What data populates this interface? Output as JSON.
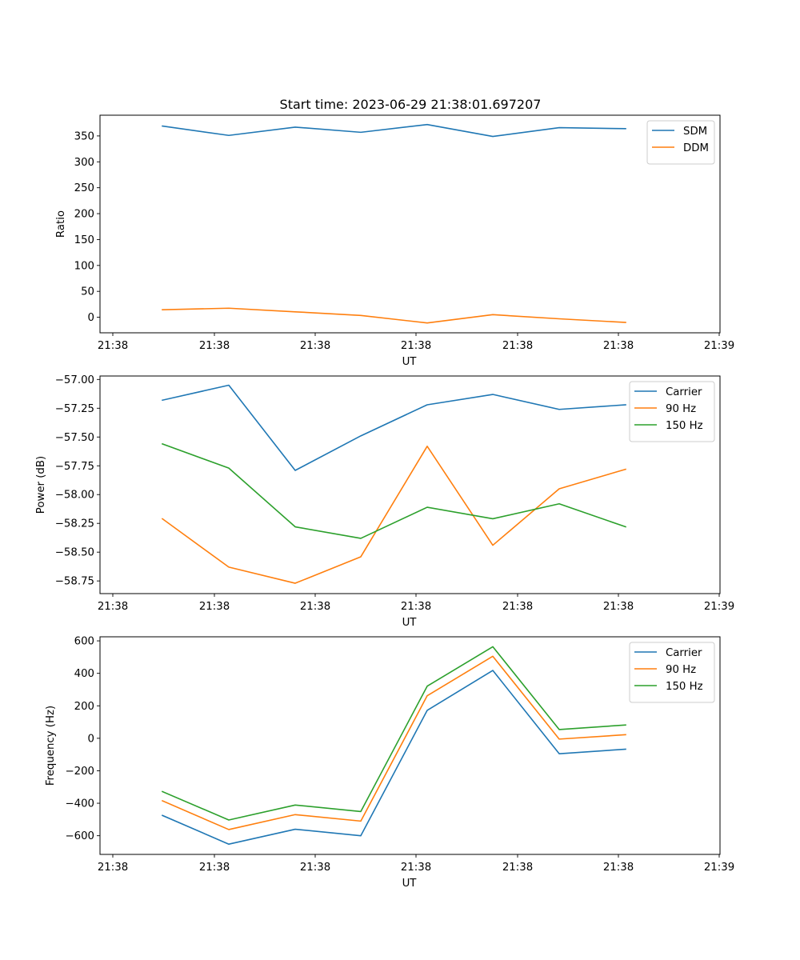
{
  "figure": {
    "title": "Start time: 2023-06-29 21:38:01.697207"
  },
  "chart_data": [
    {
      "type": "line",
      "xlabel": "UT",
      "ylabel": "Ratio",
      "x_tick_labels": [
        "21:38",
        "21:38",
        "21:38",
        "21:38",
        "21:38",
        "21:38",
        "21:39"
      ],
      "ylim": [
        -30,
        390
      ],
      "yticks": [
        0,
        50,
        100,
        150,
        200,
        250,
        300,
        350
      ],
      "ytick_labels": [
        "0",
        "50",
        "100",
        "150",
        "200",
        "250",
        "300",
        "350"
      ],
      "grid": false,
      "legend_position": "top-right",
      "series": [
        {
          "name": "SDM",
          "color": "#1f77b4",
          "values": [
            369,
            351,
            367,
            357,
            372,
            349,
            366,
            364
          ]
        },
        {
          "name": "DDM",
          "color": "#ff7f0e",
          "values": [
            14.5,
            17.5,
            10.5,
            3.5,
            -11,
            5,
            -3,
            -10
          ]
        }
      ]
    },
    {
      "type": "line",
      "xlabel": "UT",
      "ylabel": "Power (dB)",
      "x_tick_labels": [
        "21:38",
        "21:38",
        "21:38",
        "21:38",
        "21:38",
        "21:38",
        "21:39"
      ],
      "ylim": [
        -58.86,
        -56.97
      ],
      "yticks": [
        -57.0,
        -57.25,
        -57.5,
        -57.75,
        -58.0,
        -58.25,
        -58.5,
        -58.75
      ],
      "ytick_labels": [
        "−57.00",
        "−57.25",
        "−57.50",
        "−57.75",
        "−58.00",
        "−58.25",
        "−58.50",
        "−58.75"
      ],
      "grid": false,
      "legend_position": "top-right",
      "series": [
        {
          "name": "Carrier",
          "color": "#1f77b4",
          "values": [
            -57.18,
            -57.05,
            -57.79,
            -57.49,
            -57.22,
            -57.13,
            -57.26,
            -57.22
          ]
        },
        {
          "name": "90 Hz",
          "color": "#ff7f0e",
          "values": [
            -58.21,
            -58.63,
            -58.77,
            -58.54,
            -57.58,
            -58.44,
            -57.95,
            -57.78
          ]
        },
        {
          "name": "150 Hz",
          "color": "#2ca02c",
          "values": [
            -57.56,
            -57.77,
            -58.28,
            -58.38,
            -58.11,
            -58.21,
            -58.08,
            -58.28
          ]
        }
      ]
    },
    {
      "type": "line",
      "xlabel": "UT",
      "ylabel": "Frequency (Hz)",
      "x_tick_labels": [
        "21:38",
        "21:38",
        "21:38",
        "21:38",
        "21:38",
        "21:38",
        "21:39"
      ],
      "ylim": [
        -715,
        625
      ],
      "yticks": [
        -600,
        -400,
        -200,
        0,
        200,
        400,
        600
      ],
      "ytick_labels": [
        "−600",
        "−400",
        "−200",
        "0",
        "200",
        "400",
        "600"
      ],
      "grid": false,
      "legend_position": "top-right",
      "series": [
        {
          "name": "Carrier",
          "color": "#1f77b4",
          "values": [
            -475,
            -652,
            -560,
            -600,
            172,
            418,
            -95,
            -67
          ]
        },
        {
          "name": "90 Hz",
          "color": "#ff7f0e",
          "values": [
            -385,
            -562,
            -470,
            -510,
            262,
            505,
            -5,
            22
          ]
        },
        {
          "name": "150 Hz",
          "color": "#2ca02c",
          "values": [
            -328,
            -503,
            -411,
            -451,
            321,
            564,
            54,
            82
          ]
        }
      ]
    }
  ]
}
